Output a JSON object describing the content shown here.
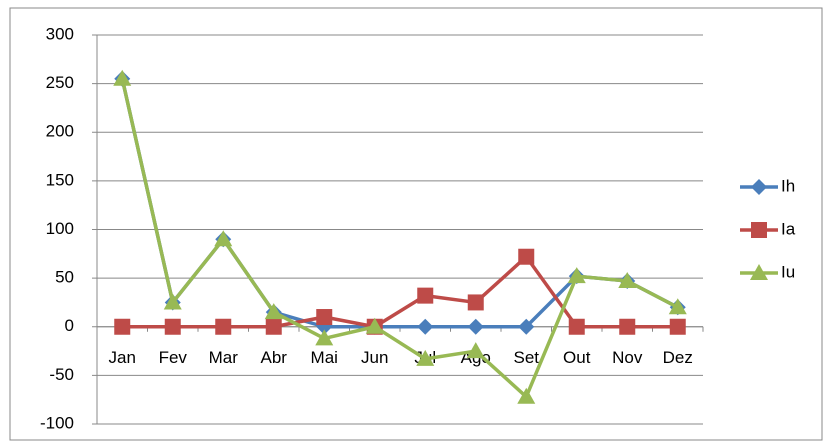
{
  "chart_data": {
    "type": "line",
    "categories": [
      "Jan",
      "Fev",
      "Mar",
      "Abr",
      "Mai",
      "Jun",
      "Jul",
      "Ago",
      "Set",
      "Out",
      "Nov",
      "Dez"
    ],
    "series": [
      {
        "name": "Ih",
        "color": "#4a7ebb",
        "marker": "diamond",
        "values": [
          255,
          25,
          90,
          15,
          0,
          0,
          0,
          0,
          0,
          52,
          47,
          20
        ]
      },
      {
        "name": "Ia",
        "color": "#be4b48",
        "marker": "square",
        "values": [
          0,
          0,
          0,
          0,
          10,
          0,
          32,
          25,
          72,
          0,
          0,
          0
        ]
      },
      {
        "name": "Iu",
        "color": "#98b954",
        "marker": "triangle",
        "values": [
          255,
          25,
          90,
          15,
          -12,
          0,
          -33,
          -25,
          -72,
          52,
          47,
          20
        ]
      }
    ],
    "ylim": [
      -100,
      300
    ],
    "yticks": [
      -100,
      -50,
      0,
      50,
      100,
      150,
      200,
      250,
      300
    ],
    "grid": true,
    "legend": "right"
  }
}
